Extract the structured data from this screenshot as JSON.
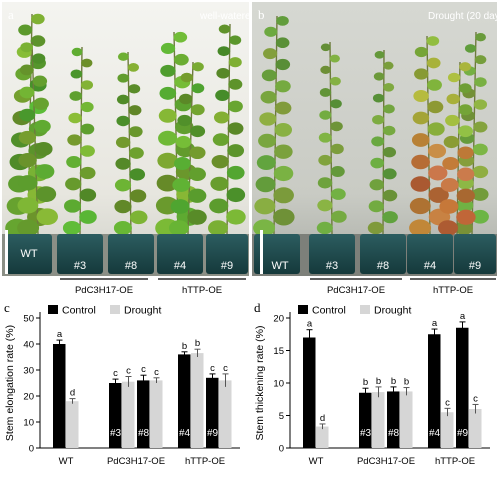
{
  "photos": [
    {
      "panel": "a",
      "condition": "well-watered",
      "pot_labels": [
        "WT",
        "#3",
        "#8",
        "#4",
        "#9"
      ],
      "groups": [
        "PdC3H17-OE",
        "hTTP-OE"
      ]
    },
    {
      "panel": "b",
      "condition": "Drought (20 days)",
      "pot_labels": [
        "WT",
        "#3",
        "#8",
        "#4",
        "#9"
      ],
      "groups": [
        "PdC3H17-OE",
        "hTTP-OE"
      ]
    }
  ],
  "colors": {
    "control": "#000000",
    "drought": "#d6d6d6"
  },
  "chart_data": [
    {
      "panel": "c",
      "type": "bar",
      "ylabel": "Stem elongation rate (%)",
      "ylim": [
        0,
        50
      ],
      "yticks": [
        0,
        10,
        20,
        30,
        40,
        50
      ],
      "legend": [
        "Control",
        "Drought"
      ],
      "legend_position": "top-left",
      "lines": [
        "WT",
        "#3",
        "#8",
        "#4",
        "#9"
      ],
      "group_labels": [
        "WT",
        "PdC3H17-OE",
        "hTTP-OE"
      ],
      "series": [
        {
          "name": "Control",
          "values": [
            40,
            25,
            26,
            36,
            27
          ],
          "errors": [
            1.5,
            1.5,
            2,
            1,
            1.5
          ],
          "letters": [
            "a",
            "c",
            "c",
            "b",
            "c"
          ]
        },
        {
          "name": "Drought",
          "values": [
            18,
            25.5,
            26,
            36.5,
            26
          ],
          "errors": [
            1,
            2,
            1,
            1.5,
            2.5
          ],
          "letters": [
            "d",
            "c",
            "c",
            "b",
            "c"
          ]
        }
      ]
    },
    {
      "panel": "d",
      "type": "bar",
      "ylabel": "Stem thickening rate (%)",
      "ylim": [
        0,
        20
      ],
      "yticks": [
        0,
        5,
        10,
        15,
        20
      ],
      "legend": [
        "Control",
        "Drought"
      ],
      "legend_position": "top-left",
      "lines": [
        "WT",
        "#3",
        "#8",
        "#4",
        "#9"
      ],
      "group_labels": [
        "WT",
        "PdC3H17-OE",
        "hTTP-OE"
      ],
      "series": [
        {
          "name": "Control",
          "values": [
            17,
            8.5,
            8.7,
            17.5,
            18.5
          ],
          "errors": [
            1.2,
            0.7,
            0.7,
            0.8,
            0.9
          ],
          "letters": [
            "a",
            "b",
            "b",
            "a",
            "a"
          ]
        },
        {
          "name": "Drought",
          "values": [
            3.3,
            8.6,
            8.7,
            5.5,
            6
          ],
          "errors": [
            0.4,
            0.8,
            0.6,
            0.6,
            0.7
          ],
          "letters": [
            "d",
            "b",
            "b",
            "c",
            "c"
          ]
        }
      ]
    }
  ]
}
